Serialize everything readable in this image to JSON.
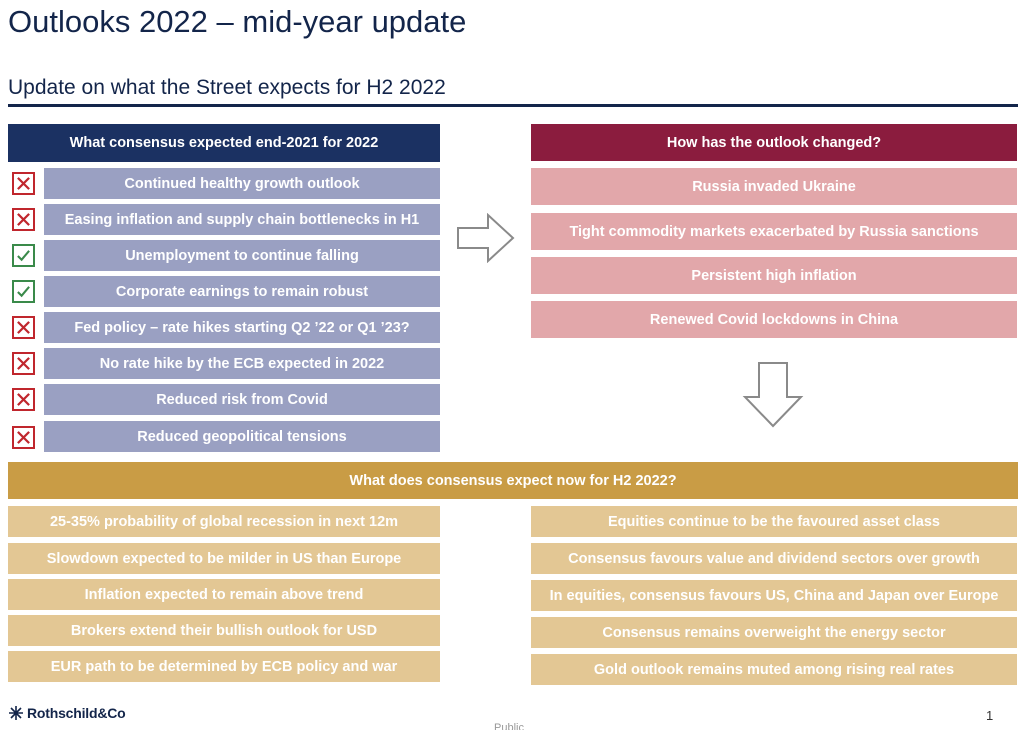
{
  "slide": {
    "title": "Outlooks 2022 – mid-year update",
    "subtitle": "Update on what the Street expects for H2 2022"
  },
  "expected": {
    "header": "What consensus expected end-2021 for 2022",
    "items": [
      {
        "label": "Continued healthy growth outlook",
        "status": "x"
      },
      {
        "label": "Easing inflation and supply chain bottlenecks in H1",
        "status": "x"
      },
      {
        "label": "Unemployment to continue falling",
        "status": "check"
      },
      {
        "label": "Corporate earnings to remain robust",
        "status": "check"
      },
      {
        "label": "Fed policy – rate hikes starting Q2 ’22 or Q1 ’23?",
        "status": "x"
      },
      {
        "label": "No rate hike by the ECB expected in 2022",
        "status": "x"
      },
      {
        "label": "Reduced risk from Covid",
        "status": "x"
      },
      {
        "label": "Reduced geopolitical tensions",
        "status": "x"
      }
    ]
  },
  "changed": {
    "header": "How has the outlook changed?",
    "items": [
      "Russia invaded Ukraine",
      "Tight commodity markets exacerbated by Russia sanctions",
      "Persistent high inflation",
      "Renewed Covid lockdowns in China"
    ]
  },
  "now": {
    "header": "What does consensus expect now for H2 2022?",
    "left": [
      "25-35% probability of global recession in next 12m",
      "Slowdown expected to be milder in US than Europe",
      "Inflation expected to remain above trend",
      "Brokers extend their bullish outlook for USD",
      "EUR path to be determined by ECB policy and war"
    ],
    "right": [
      "Equities continue to be the favoured asset class",
      "Consensus favours value and dividend sectors over growth",
      "In equities, consensus favours US, China and Japan over Europe",
      "Consensus remains overweight the energy sector",
      "Gold outlook remains muted among rising real rates"
    ]
  },
  "footer": {
    "brand": "Rothschild&Co",
    "page": "1",
    "classification": "Public"
  },
  "colors": {
    "navy": "#1b3162",
    "maroon": "#8b1c3e",
    "gold": "#c99c45",
    "lavender": "#9aa0c2",
    "pink": "#e2a7aa",
    "sand": "#e3c794"
  }
}
